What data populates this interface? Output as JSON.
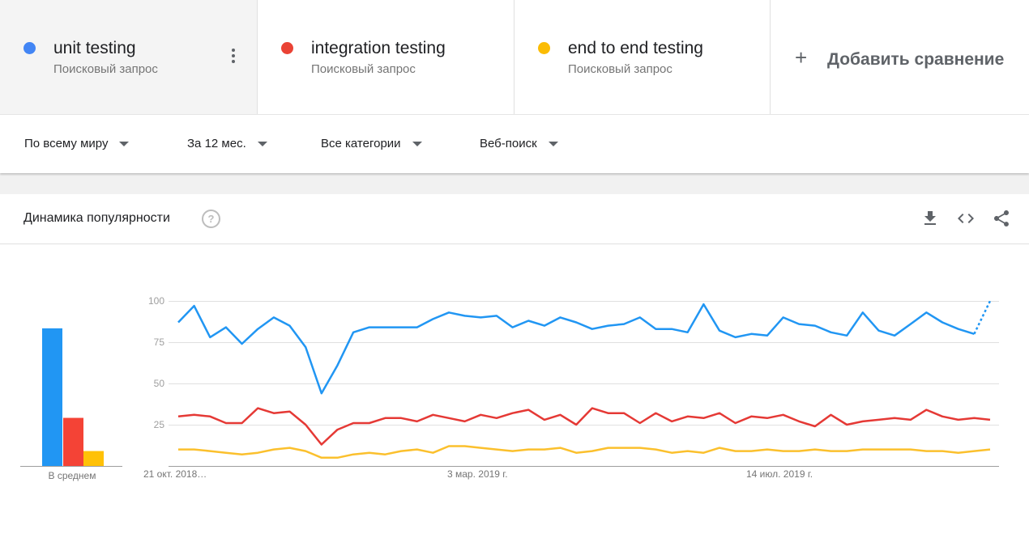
{
  "terms": [
    {
      "name": "unit testing",
      "subtitle": "Поисковый запрос",
      "color": "#4285f4"
    },
    {
      "name": "integration testing",
      "subtitle": "Поисковый запрос",
      "color": "#ea4335"
    },
    {
      "name": "end to end testing",
      "subtitle": "Поисковый запрос",
      "color": "#fbbc04"
    }
  ],
  "add_comparison": {
    "label": "Добавить сравнение",
    "icon": "plus-icon"
  },
  "filters": {
    "region": "По всему миру",
    "period": "За 12 мес.",
    "category": "Все категории",
    "search_type": "Веб-поиск"
  },
  "card": {
    "title": "Динамика популярности",
    "help_icon": "question-circle-icon",
    "actions": [
      "download-icon",
      "embed-code-icon",
      "share-icon"
    ]
  },
  "chart_data": [
    {
      "type": "bar",
      "categories": [
        "unit testing",
        "integration testing",
        "end to end testing"
      ],
      "values": [
        83,
        29,
        9
      ],
      "xlabel": "В среднем",
      "ylim": [
        0,
        100
      ],
      "colors": [
        "#2196f3",
        "#f44336",
        "#ffc107"
      ]
    },
    {
      "type": "line",
      "x_tick_labels": [
        "21 окт. 2018…",
        "3 мар. 2019 г.",
        "14 июл. 2019 г."
      ],
      "y_ticks": [
        "100",
        "75",
        "50",
        "25"
      ],
      "ylim": [
        0,
        100
      ],
      "grid": true,
      "series": [
        {
          "name": "unit testing",
          "color": "#2196f3",
          "values": [
            87,
            97,
            78,
            84,
            74,
            83,
            90,
            85,
            72,
            44,
            61,
            81,
            84,
            84,
            84,
            84,
            89,
            93,
            91,
            90,
            91,
            84,
            88,
            85,
            90,
            87,
            83,
            85,
            86,
            90,
            83,
            83,
            81,
            98,
            82,
            78,
            80,
            79,
            90,
            86,
            85,
            81,
            79,
            93,
            82,
            79,
            86,
            93,
            87,
            83,
            80,
            100
          ]
        },
        {
          "name": "integration testing",
          "color": "#e53935",
          "values": [
            30,
            31,
            30,
            26,
            26,
            35,
            32,
            33,
            25,
            13,
            22,
            26,
            26,
            29,
            29,
            27,
            31,
            29,
            27,
            31,
            29,
            32,
            34,
            28,
            31,
            25,
            35,
            32,
            32,
            26,
            32,
            27,
            30,
            29,
            32,
            26,
            30,
            29,
            31,
            27,
            24,
            31,
            25,
            27,
            28,
            29,
            28,
            34,
            30,
            28,
            29,
            28
          ]
        },
        {
          "name": "end to end testing",
          "color": "#fbc02d",
          "values": [
            10,
            10,
            9,
            8,
            7,
            8,
            10,
            11,
            9,
            5,
            5,
            7,
            8,
            7,
            9,
            10,
            8,
            12,
            12,
            11,
            10,
            9,
            10,
            10,
            11,
            8,
            9,
            11,
            11,
            11,
            10,
            8,
            9,
            8,
            11,
            9,
            9,
            10,
            9,
            9,
            10,
            9,
            9,
            10,
            10,
            10,
            10,
            9,
            9,
            8,
            9,
            10
          ]
        }
      ]
    }
  ]
}
